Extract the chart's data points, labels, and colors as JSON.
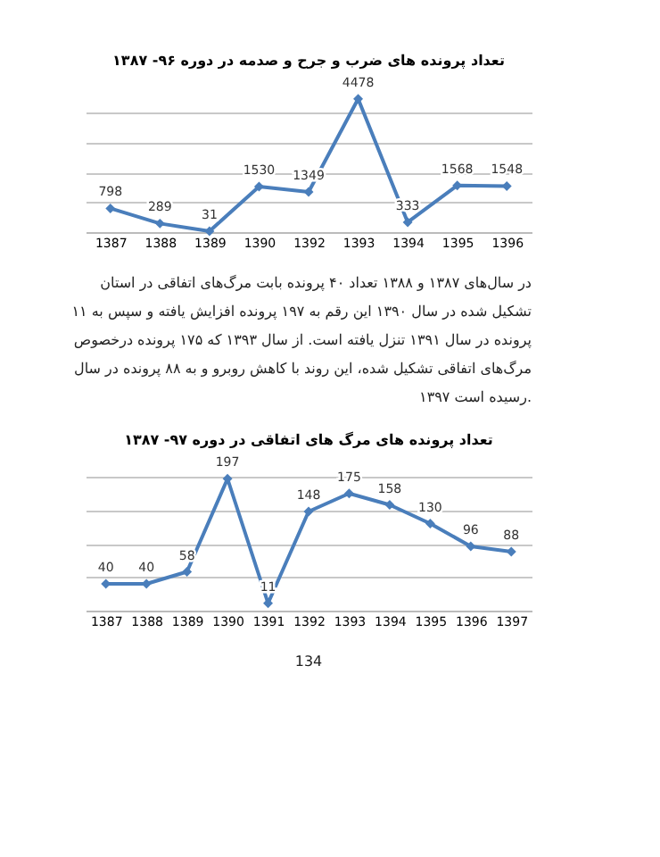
{
  "chart_data": [
    {
      "type": "line",
      "title": "تعداد پرونده های ضرب و جرح و صدمه در دوره ۹۶- ۱۳۸۷",
      "categories": [
        "1387",
        "1388",
        "1389",
        "1390",
        "1392",
        "1393",
        "1394",
        "1395",
        "1396"
      ],
      "series": [
        {
          "color": "#4a7ebb",
          "values": [
            798,
            289,
            31,
            1530,
            1349,
            4478,
            333,
            1568,
            1548
          ]
        }
      ],
      "tick_labels": "x",
      "grid": "y",
      "marker": "diamond",
      "line_style": "solid",
      "data_labels": true,
      "annotations": [
        "در سال‌های ۱۳۸۷ و ۱۳۸۸ تعداد ۴۰ پرونده بابت مرگ‌های اتفاقی در استان",
        "تشکیل شده در سال ۱۳۹۰ این رقم به ۱۹۷ پرونده افزایش یافته و سپس به ۱۱",
        "پرونده در سال ۱۳۹۱ تنزل یافته است. از سال ۱۳۹۳ که ۱۷۵ پرونده درخصوص",
        "مرگ‌های اتفاقی تشکیل شده، این روند با کاهش روبرو و به ۸۸ پرونده در سال",
        "۱۳۹۷ رسیده است."
      ]
    },
    {
      "type": "line",
      "title": "تعداد پرونده های مرگ های اتفاقی در دوره ۹۷- ۱۳۸۷",
      "categories": [
        "1387",
        "1388",
        "1389",
        "1390",
        "1391",
        "1392",
        "1393",
        "1394",
        "1395",
        "1396",
        "1397"
      ],
      "series": [
        {
          "color": "#4a7ebb",
          "values": [
            40,
            40,
            58,
            197,
            11,
            148,
            175,
            158,
            130,
            96,
            88
          ]
        }
      ],
      "tick_labels": "x",
      "grid": "y",
      "marker": "diamond",
      "line_style": "solid",
      "data_labels": true,
      "annotations": [
        "134"
      ]
    }
  ]
}
